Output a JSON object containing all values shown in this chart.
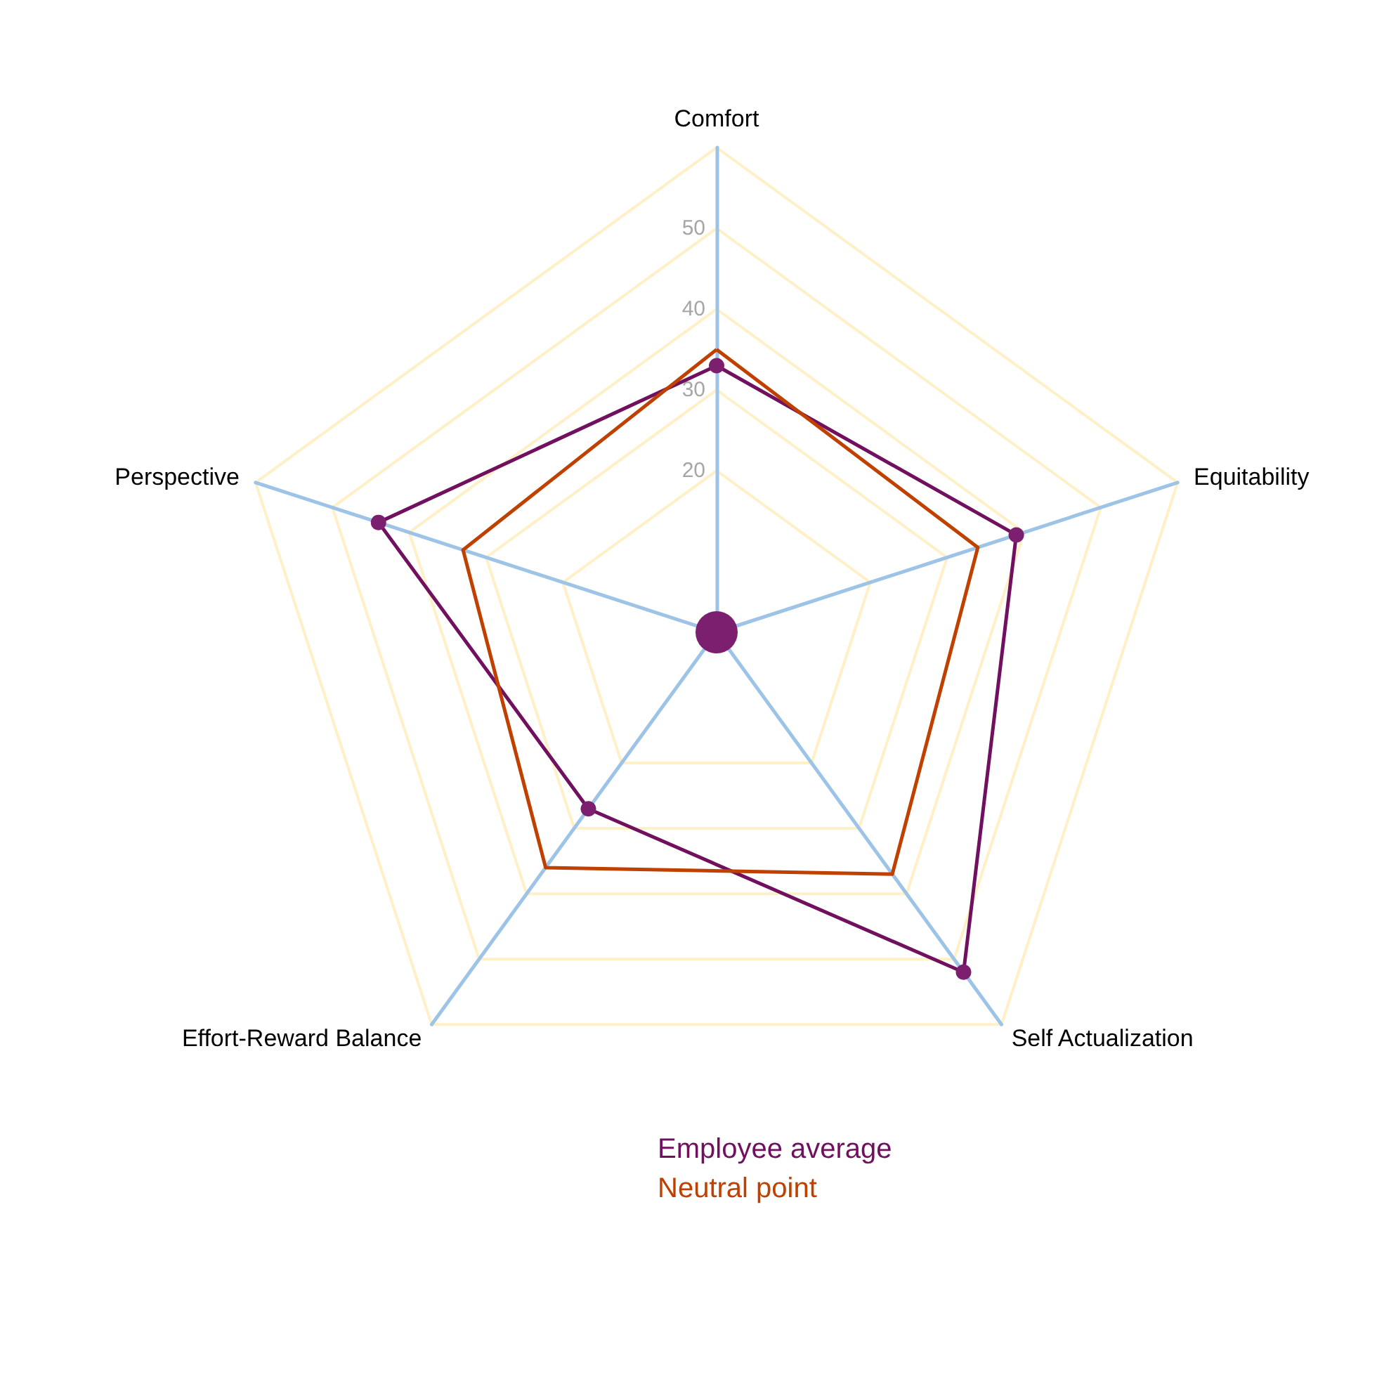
{
  "chart_data": {
    "type": "radar",
    "categories": [
      "Comfort",
      "Equitability",
      "Self Actualization",
      "Effort-Reward Balance",
      "Perspective"
    ],
    "series": [
      {
        "name": "Employee average",
        "color": "#70105f",
        "marker": "circle",
        "values": [
          33,
          39,
          52,
          27,
          44
        ]
      },
      {
        "name": "Neutral point",
        "color": "#c04000",
        "marker": "none",
        "values": [
          35,
          34,
          37,
          36,
          33
        ]
      }
    ],
    "ylim": [
      0,
      60
    ],
    "yticks": [
      20,
      30,
      40,
      50
    ],
    "legend": "bottom",
    "grid": true
  }
}
